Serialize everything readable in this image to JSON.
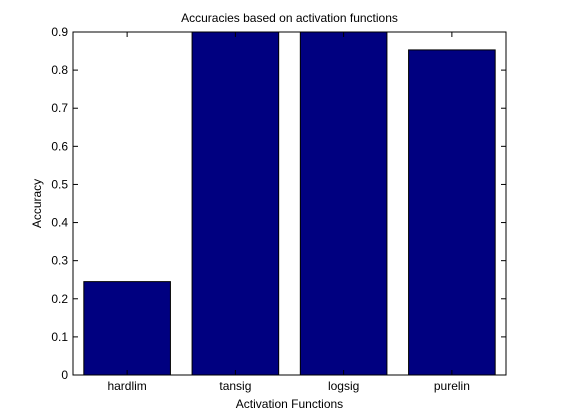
{
  "chart_data": {
    "type": "bar",
    "title": "Accuracies based on activation functions",
    "xlabel": "Activation Functions",
    "ylabel": "Accuracy",
    "categories": [
      "hardlim",
      "tansig",
      "logsig",
      "purelin"
    ],
    "values": [
      0.245,
      0.9,
      0.9,
      0.853
    ],
    "ylim": [
      0,
      0.9
    ],
    "yticks": [
      0,
      0.1,
      0.2,
      0.3,
      0.4,
      0.5,
      0.6,
      0.7,
      0.8,
      0.9
    ],
    "ytick_labels": [
      "0",
      "0.1",
      "0.2",
      "0.3",
      "0.4",
      "0.5",
      "0.6",
      "0.7",
      "0.8",
      "0.9"
    ],
    "grid": false,
    "legend": "none",
    "bar_color": "#000080",
    "axes_color": "#000000",
    "background_color": "#ffffff"
  }
}
